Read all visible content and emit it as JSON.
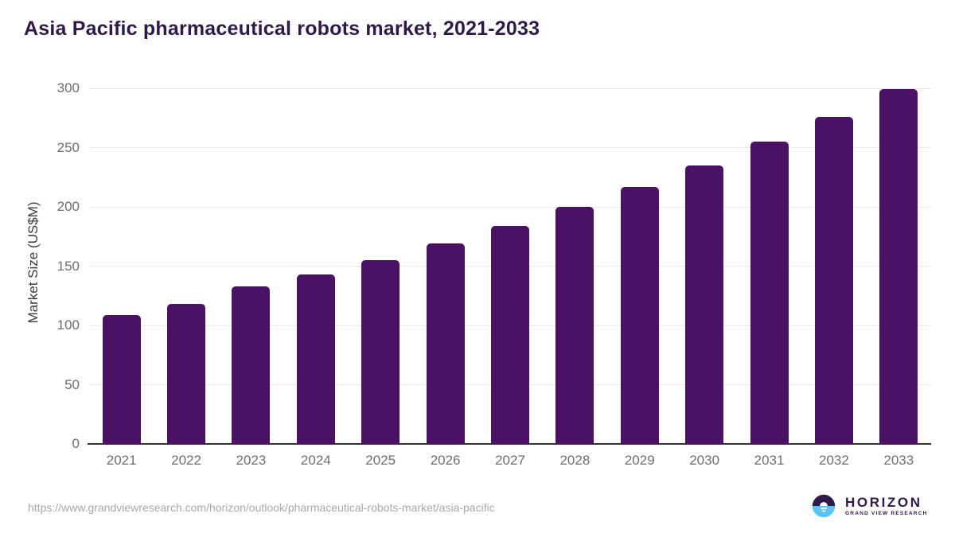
{
  "chart_data": {
    "type": "bar",
    "title": "Asia Pacific pharmaceutical robots market, 2021-2033",
    "categories": [
      "2021",
      "2022",
      "2023",
      "2024",
      "2025",
      "2026",
      "2027",
      "2028",
      "2029",
      "2030",
      "2031",
      "2032",
      "2033"
    ],
    "values": [
      109,
      118,
      133,
      143,
      155,
      169,
      184,
      200,
      217,
      235,
      255,
      276,
      299
    ],
    "xlabel": "",
    "ylabel": "Market Size (US$M)",
    "ylim": [
      0,
      300
    ],
    "yticks": [
      0,
      50,
      100,
      150,
      200,
      250,
      300
    ],
    "grid": true,
    "legend": false,
    "bar_color": "#4a1164"
  },
  "footer": {
    "source_url": "https://www.grandviewresearch.com/horizon/outlook/pharmaceutical-robots-market/asia-pacific",
    "logo_text": "HORIZON",
    "logo_subtext": "GRAND VIEW RESEARCH"
  },
  "colors": {
    "bar": "#4a1164",
    "title_text": "#2e1a47",
    "axis_line": "#333333",
    "gridline": "#e8e8e8",
    "tick_text": "#6e6e6e",
    "axis_title_text": "#3c3c3c",
    "footer_text": "#a8a8a8",
    "logo_purple": "#2e1a47",
    "logo_blue": "#58c4ef"
  }
}
